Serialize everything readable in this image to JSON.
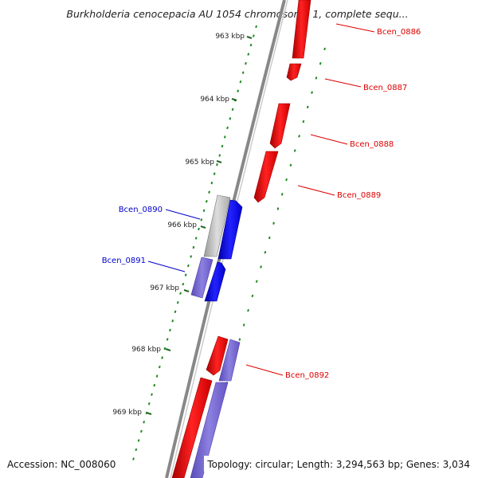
{
  "title": "Burkholderia cenocepacia AU 1054 chromosome 1, complete sequ...",
  "footer": {
    "accession": "Accession: NC_008060",
    "summary": "Topology: circular; Length: 3,294,563 bp; Genes: 3,034"
  },
  "scale_ticks": [
    {
      "label": "963 kbp"
    },
    {
      "label": "964 kbp"
    },
    {
      "label": "965 kbp"
    },
    {
      "label": "966 kbp"
    },
    {
      "label": "967 kbp"
    },
    {
      "label": "968 kbp"
    },
    {
      "label": "969 kbp"
    }
  ],
  "genes": [
    {
      "label": "Bcen_0886",
      "color": "#dd0000"
    },
    {
      "label": "Bcen_0887",
      "color": "#dd0000"
    },
    {
      "label": "Bcen_0888",
      "color": "#dd0000"
    },
    {
      "label": "Bcen_0889",
      "color": "#dd0000"
    },
    {
      "label": "Bcen_0890",
      "color": "#0000cc"
    },
    {
      "label": "Bcen_0891",
      "color": "#0000cc"
    },
    {
      "label": "Bcen_0892",
      "color": "#dd0000"
    }
  ],
  "colors": {
    "forward_strand": "#ee1111",
    "reverse_strand": "#1111ee",
    "rna_feature": "#7b68d4",
    "selected_feature": "#bbbbbb",
    "backbone": "#888888",
    "dotted_track": "#228822"
  }
}
